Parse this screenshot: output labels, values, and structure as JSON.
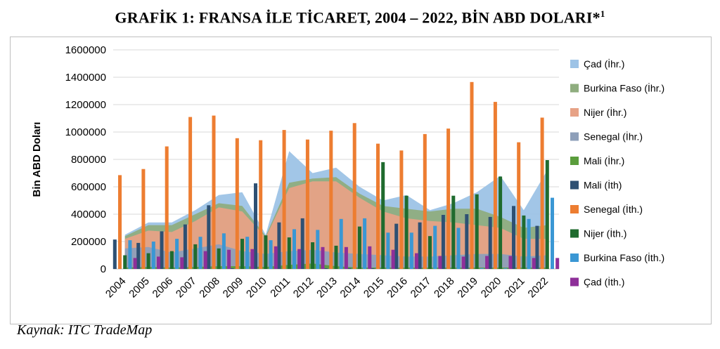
{
  "title": "GRAFİK 1: FRANSA İLE TİCARET, 2004 – 2022, BİN ABD DOLARI*",
  "title_sup": "1",
  "source": "Kaynak: ITC TradeMap",
  "chart_data": {
    "type": "bar",
    "title": "GRAFİK 1: FRANSA İLE TİCARET, 2004 – 2022, BİN ABD DOLARI*1",
    "xlabel": "",
    "ylabel": "Bin ABD Doları",
    "ylim": [
      0,
      1600000
    ],
    "yticks": [
      0,
      200000,
      400000,
      600000,
      800000,
      1000000,
      1200000,
      1400000,
      1600000
    ],
    "grid": true,
    "legend_position": "right",
    "categories": [
      "2004",
      "2005",
      "2006",
      "2007",
      "2008",
      "2009",
      "2010",
      "2011",
      "2012",
      "2013",
      "2014",
      "2015",
      "2016",
      "2017",
      "2018",
      "2019",
      "2020",
      "2021",
      "2022"
    ],
    "area_series": [
      {
        "name": "Çad (İhr.)",
        "color": "#9dc3e6",
        "values": [
          250000,
          340000,
          340000,
          430000,
          540000,
          560000,
          250000,
          860000,
          700000,
          740000,
          600000,
          500000,
          540000,
          430000,
          480000,
          560000,
          680000,
          430000,
          720000
        ]
      },
      {
        "name": "Burkina Faso (İhr.)",
        "color": "#8fad7f",
        "values": [
          240000,
          320000,
          320000,
          400000,
          480000,
          460000,
          240000,
          630000,
          660000,
          670000,
          550000,
          460000,
          440000,
          420000,
          440000,
          440000,
          380000,
          300000,
          320000
        ]
      },
      {
        "name": "Nijer (İhr.)",
        "color": "#e7a286",
        "values": [
          220000,
          280000,
          270000,
          350000,
          450000,
          420000,
          230000,
          590000,
          640000,
          640000,
          520000,
          420000,
          370000,
          350000,
          340000,
          320000,
          300000,
          220000,
          220000
        ]
      },
      {
        "name": "Senegal (İhr.)",
        "color": "#8e9fb9",
        "values": [
          150000,
          160000,
          120000,
          150000,
          180000,
          130000,
          110000,
          130000,
          140000,
          120000,
          110000,
          100000,
          90000,
          90000,
          100000,
          110000,
          110000,
          90000,
          100000
        ]
      },
      {
        "name": "Mali (İhr.)",
        "color": "#5a9d3c",
        "values": [
          10000,
          15000,
          10000,
          15000,
          20000,
          20000,
          15000,
          30000,
          40000,
          20000,
          10000,
          10000,
          10000,
          10000,
          10000,
          10000,
          10000,
          10000,
          10000
        ]
      }
    ],
    "bar_series": [
      {
        "name": "Mali (İth)",
        "color": "#2e5073",
        "values": [
          215000,
          190000,
          275000,
          325000,
          465000,
          5000,
          625000,
          340000,
          370000,
          5000,
          5000,
          5000,
          330000,
          340000,
          395000,
          400000,
          380000,
          460000,
          315000
        ]
      },
      {
        "name": "Senegal (İth.)",
        "color": "#ed7d31",
        "values": [
          685000,
          730000,
          895000,
          1110000,
          1120000,
          955000,
          940000,
          1015000,
          945000,
          1010000,
          1065000,
          915000,
          865000,
          985000,
          1025000,
          1365000,
          1220000,
          925000,
          1105000
        ]
      },
      {
        "name": "Nijer (İth.)",
        "color": "#1f6b2e",
        "values": [
          100000,
          115000,
          130000,
          180000,
          150000,
          220000,
          245000,
          230000,
          195000,
          170000,
          310000,
          780000,
          535000,
          240000,
          535000,
          545000,
          675000,
          390000,
          795000
        ]
      },
      {
        "name": "Burkina Faso (İth.)",
        "color": "#3a97d4",
        "values": [
          210000,
          200000,
          220000,
          235000,
          260000,
          235000,
          210000,
          290000,
          285000,
          365000,
          370000,
          265000,
          265000,
          315000,
          300000,
          5000,
          5000,
          365000,
          520000
        ]
      },
      {
        "name": "Çad (İth.)",
        "color": "#8e2f99",
        "values": [
          80000,
          90000,
          85000,
          130000,
          140000,
          145000,
          165000,
          145000,
          160000,
          160000,
          165000,
          140000,
          115000,
          95000,
          90000,
          95000,
          95000,
          80000,
          80000
        ]
      }
    ],
    "legend": [
      "Çad (İhr.)",
      "Burkina Faso (İhr.)",
      "Nijer (İhr.)",
      "Senegal (İhr.)",
      "Mali (İhr.)",
      "Mali (İth)",
      "Senegal (İth.)",
      "Nijer (İth.)",
      "Burkina Faso (İth.)",
      "Çad (İth.)"
    ]
  }
}
